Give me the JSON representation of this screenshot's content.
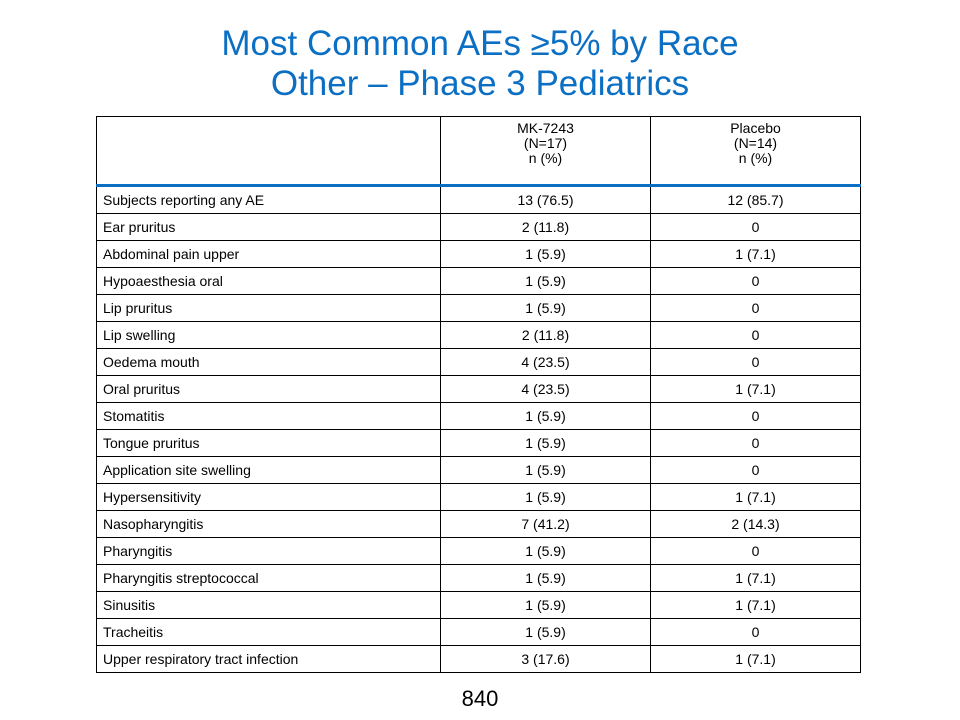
{
  "slide": {
    "title_line1": "Most Common AEs ≥5% by Race",
    "title_line2": "Other – Phase 3 Pediatrics",
    "page_number": "840"
  },
  "table": {
    "header_col0": "",
    "col1": {
      "line1": "MK-7243",
      "line2": "(N=17)",
      "line3": "n (%)"
    },
    "col2": {
      "line1": "Placebo",
      "line2": "(N=14)",
      "line3": "n (%)"
    },
    "rows": [
      {
        "label": "Subjects reporting any AE",
        "mk": "13 (76.5)",
        "placebo": "12 (85.7)"
      },
      {
        "label": "Ear pruritus",
        "mk": "2 (11.8)",
        "placebo": "0"
      },
      {
        "label": "Abdominal pain upper",
        "mk": "1 (5.9)",
        "placebo": "1 (7.1)"
      },
      {
        "label": "Hypoaesthesia oral",
        "mk": "1 (5.9)",
        "placebo": "0"
      },
      {
        "label": "Lip pruritus",
        "mk": "1 (5.9)",
        "placebo": "0"
      },
      {
        "label": "Lip swelling",
        "mk": "2 (11.8)",
        "placebo": "0"
      },
      {
        "label": "Oedema mouth",
        "mk": "4 (23.5)",
        "placebo": "0"
      },
      {
        "label": "Oral pruritus",
        "mk": "4 (23.5)",
        "placebo": "1 (7.1)"
      },
      {
        "label": "Stomatitis",
        "mk": "1 (5.9)",
        "placebo": "0"
      },
      {
        "label": "Tongue pruritus",
        "mk": "1 (5.9)",
        "placebo": "0"
      },
      {
        "label": "Application site swelling",
        "mk": "1 (5.9)",
        "placebo": "0"
      },
      {
        "label": "Hypersensitivity",
        "mk": "1 (5.9)",
        "placebo": "1 (7.1)"
      },
      {
        "label": "Nasopharyngitis",
        "mk": "7 (41.2)",
        "placebo": "2 (14.3)"
      },
      {
        "label": "Pharyngitis",
        "mk": "1 (5.9)",
        "placebo": "0"
      },
      {
        "label": "Pharyngitis streptococcal",
        "mk": "1 (5.9)",
        "placebo": "1 (7.1)"
      },
      {
        "label": "Sinusitis",
        "mk": "1 (5.9)",
        "placebo": "1 (7.1)"
      },
      {
        "label": "Tracheitis",
        "mk": "1 (5.9)",
        "placebo": "0"
      },
      {
        "label": "Upper respiratory tract infection",
        "mk": "3 (17.6)",
        "placebo": "1 (7.1)"
      }
    ]
  },
  "colors": {
    "title": "#0b6fc4",
    "header_rule": "#0b6fc4"
  }
}
